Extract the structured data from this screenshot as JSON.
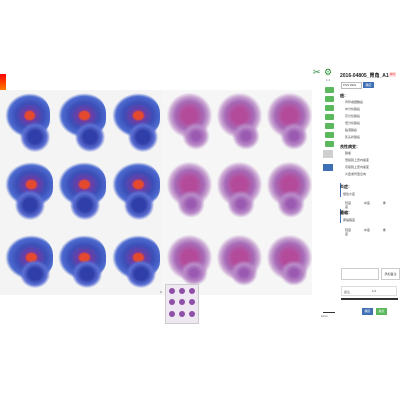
{
  "toolbar": {
    "scissors_label": "",
    "gear_label": "",
    "zoom_text": "1:1",
    "green_buttons": [
      "",
      "",
      "",
      "",
      "",
      "",
      ""
    ],
    "gray_button": "",
    "blue_button": ""
  },
  "panel": {
    "title": "2016-04805_胃角_A1-1",
    "flag": "MIN",
    "select_value": "PSS  DEN",
    "select_button": "确定",
    "section_1": "癌：",
    "section_1_items": [
      "胃印戒细胞癌",
      "中分化腺癌",
      "高分化腺癌",
      "低分化腺癌",
      "粘液腺癌",
      "乳头状腺癌"
    ],
    "section_2": "良性病变：",
    "section_2_items": [
      "腺瘤",
      "低级别上皮内瘤变",
      "高级别上皮内瘤变",
      "炎症或胃型息肉"
    ],
    "section_3": "炎症：",
    "section_3_sub": "慢性炎症",
    "section_3_options": [
      "轻度",
      "中度",
      "重度"
    ],
    "section_4": "萎缩：",
    "section_4_sub": "萎缩程度",
    "section_4_options": [
      "轻度",
      "中度",
      "重度"
    ],
    "textbox_button": "添加备注",
    "note_text": "备注",
    "pager": "1/1",
    "confirm": "确定",
    "submit": "提交"
  },
  "viewer": {
    "scale_text": "1mm",
    "ruler_mark": "0"
  }
}
